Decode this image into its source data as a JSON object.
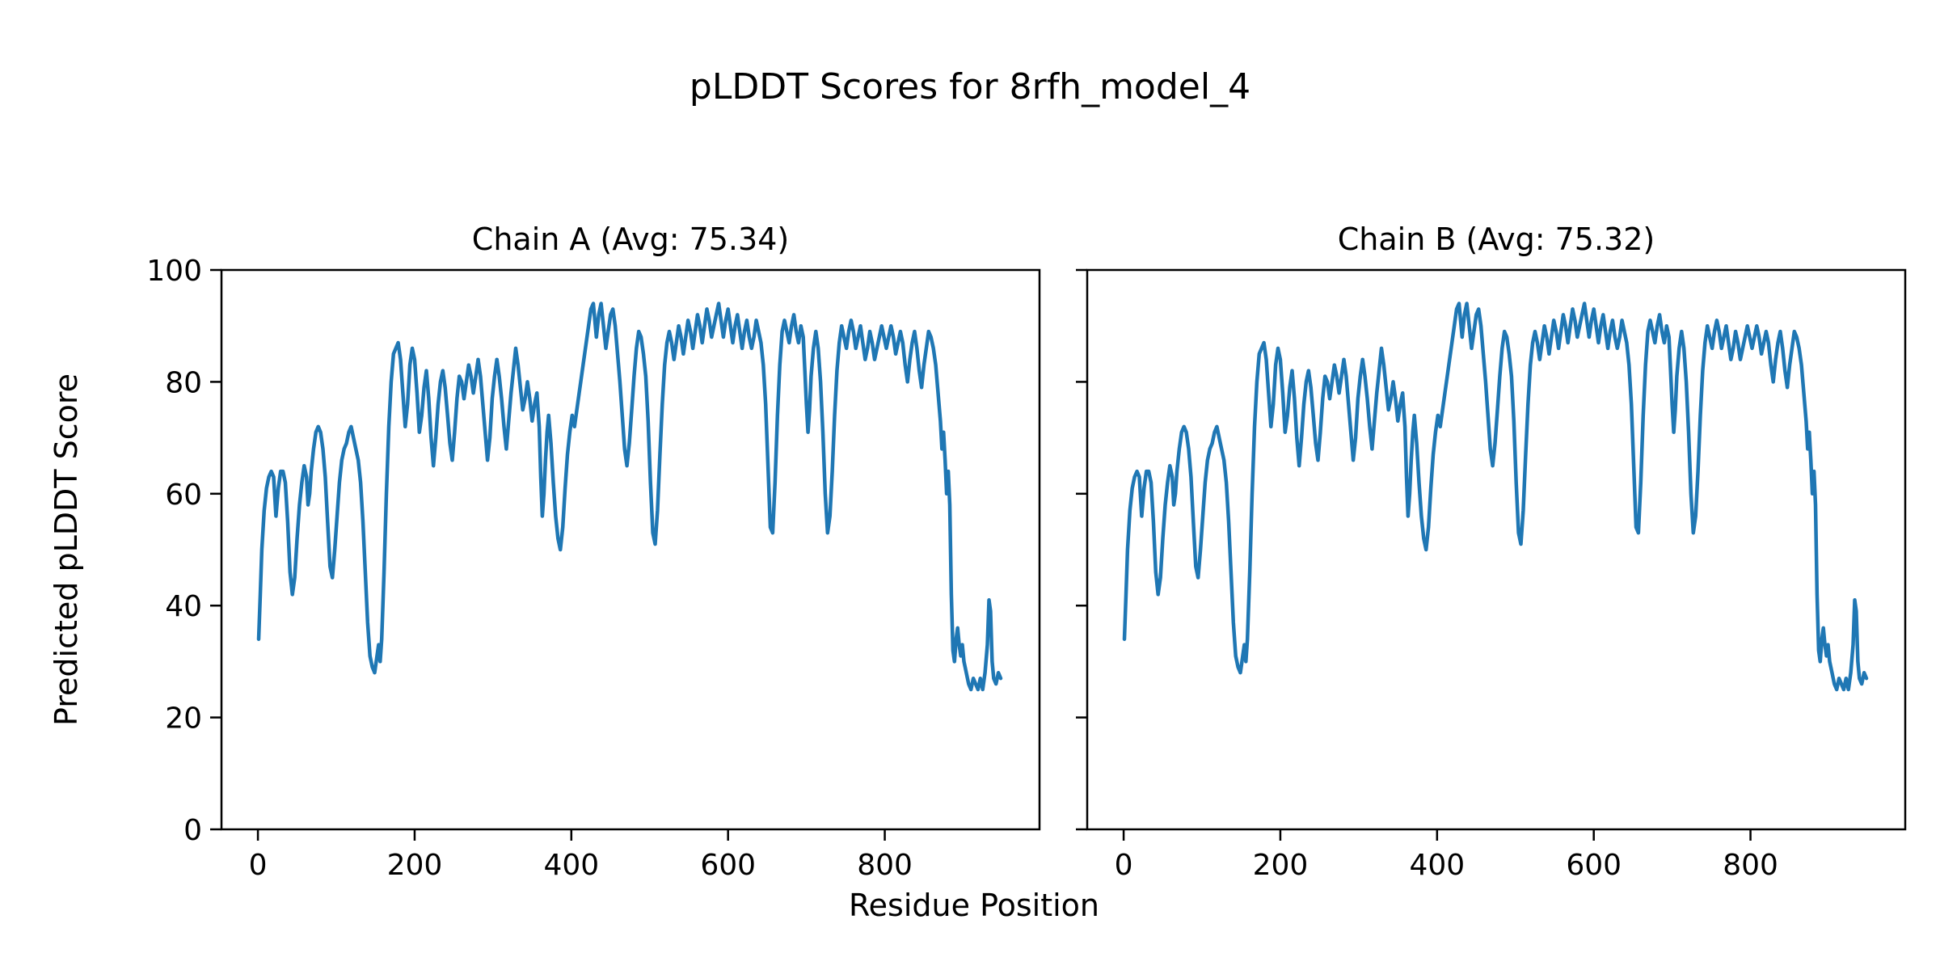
{
  "chart_data": {
    "type": "line",
    "suptitle": "pLDDT Scores for 8rfh_model_4",
    "xlabel": "Residue Position",
    "ylabel": "Predicted pLDDT Score",
    "line_color": "#1f77b4",
    "axis_color": "#000000",
    "background": "#ffffff",
    "grid": false,
    "legend": null,
    "xlim": [
      -46.5,
      997.5
    ],
    "ylim": [
      0,
      100
    ],
    "xticks": [
      0,
      200,
      400,
      600,
      800
    ],
    "xtick_labels": [
      "0",
      "200",
      "400",
      "600",
      "800"
    ],
    "yticks": [
      0,
      20,
      40,
      60,
      80,
      100
    ],
    "ytick_labels": [
      "0",
      "20",
      "40",
      "60",
      "80",
      "100"
    ],
    "subplots": [
      {
        "title": "Chain A (Avg: 75.34)",
        "chain": "A",
        "avg_plddt": 75.34
      },
      {
        "title": "Chain B (Avg: 75.32)",
        "chain": "B",
        "avg_plddt": 75.32
      }
    ],
    "note": "Chain A and Chain B curves are visually identical pLDDT profiles over ~950 residues; shared points series below is plotted in both subplots.",
    "points": [
      [
        1,
        34
      ],
      [
        3,
        42
      ],
      [
        5,
        50
      ],
      [
        8,
        57
      ],
      [
        11,
        61
      ],
      [
        14,
        63
      ],
      [
        17,
        64
      ],
      [
        20,
        63
      ],
      [
        23,
        56
      ],
      [
        26,
        61
      ],
      [
        29,
        64
      ],
      [
        32,
        64
      ],
      [
        35,
        62
      ],
      [
        38,
        55
      ],
      [
        41,
        46
      ],
      [
        44,
        42
      ],
      [
        47,
        45
      ],
      [
        50,
        52
      ],
      [
        53,
        58
      ],
      [
        56,
        62
      ],
      [
        59,
        65
      ],
      [
        62,
        63
      ],
      [
        64,
        58
      ],
      [
        66,
        60
      ],
      [
        68,
        64
      ],
      [
        71,
        68
      ],
      [
        74,
        71
      ],
      [
        77,
        72
      ],
      [
        80,
        71
      ],
      [
        83,
        68
      ],
      [
        86,
        63
      ],
      [
        89,
        55
      ],
      [
        92,
        47
      ],
      [
        95,
        45
      ],
      [
        98,
        50
      ],
      [
        101,
        56
      ],
      [
        104,
        62
      ],
      [
        107,
        66
      ],
      [
        110,
        68
      ],
      [
        113,
        69
      ],
      [
        116,
        71
      ],
      [
        119,
        72
      ],
      [
        122,
        70
      ],
      [
        125,
        68
      ],
      [
        128,
        66
      ],
      [
        131,
        62
      ],
      [
        134,
        55
      ],
      [
        137,
        46
      ],
      [
        140,
        37
      ],
      [
        143,
        31
      ],
      [
        146,
        29
      ],
      [
        149,
        28
      ],
      [
        152,
        31
      ],
      [
        154,
        33
      ],
      [
        156,
        30
      ],
      [
        158,
        34
      ],
      [
        161,
        46
      ],
      [
        164,
        60
      ],
      [
        167,
        72
      ],
      [
        170,
        80
      ],
      [
        173,
        85
      ],
      [
        176,
        86
      ],
      [
        179,
        87
      ],
      [
        182,
        84
      ],
      [
        185,
        78
      ],
      [
        188,
        72
      ],
      [
        191,
        76
      ],
      [
        194,
        83
      ],
      [
        197,
        86
      ],
      [
        200,
        84
      ],
      [
        203,
        78
      ],
      [
        206,
        71
      ],
      [
        209,
        74
      ],
      [
        212,
        79
      ],
      [
        215,
        82
      ],
      [
        218,
        77
      ],
      [
        221,
        70
      ],
      [
        224,
        65
      ],
      [
        227,
        70
      ],
      [
        230,
        76
      ],
      [
        233,
        80
      ],
      [
        236,
        82
      ],
      [
        239,
        79
      ],
      [
        242,
        74
      ],
      [
        245,
        69
      ],
      [
        248,
        66
      ],
      [
        251,
        71
      ],
      [
        254,
        77
      ],
      [
        257,
        81
      ],
      [
        260,
        80
      ],
      [
        263,
        77
      ],
      [
        266,
        80
      ],
      [
        269,
        83
      ],
      [
        272,
        81
      ],
      [
        275,
        78
      ],
      [
        278,
        81
      ],
      [
        281,
        84
      ],
      [
        284,
        81
      ],
      [
        287,
        76
      ],
      [
        290,
        71
      ],
      [
        293,
        66
      ],
      [
        296,
        70
      ],
      [
        299,
        77
      ],
      [
        302,
        81
      ],
      [
        305,
        84
      ],
      [
        308,
        81
      ],
      [
        311,
        77
      ],
      [
        314,
        72
      ],
      [
        317,
        68
      ],
      [
        320,
        73
      ],
      [
        323,
        78
      ],
      [
        326,
        82
      ],
      [
        329,
        86
      ],
      [
        332,
        83
      ],
      [
        335,
        79
      ],
      [
        338,
        75
      ],
      [
        341,
        77
      ],
      [
        344,
        80
      ],
      [
        347,
        77
      ],
      [
        350,
        73
      ],
      [
        353,
        76
      ],
      [
        356,
        78
      ],
      [
        359,
        72
      ],
      [
        361,
        63
      ],
      [
        363,
        56
      ],
      [
        365,
        60
      ],
      [
        367,
        66
      ],
      [
        369,
        71
      ],
      [
        371,
        74
      ],
      [
        374,
        69
      ],
      [
        377,
        62
      ],
      [
        380,
        56
      ],
      [
        383,
        52
      ],
      [
        386,
        50
      ],
      [
        389,
        54
      ],
      [
        392,
        61
      ],
      [
        395,
        67
      ],
      [
        398,
        71
      ],
      [
        401,
        74
      ],
      [
        404,
        72
      ],
      [
        407,
        75
      ],
      [
        410,
        78
      ],
      [
        413,
        81
      ],
      [
        416,
        84
      ],
      [
        419,
        87
      ],
      [
        422,
        90
      ],
      [
        425,
        93
      ],
      [
        428,
        94
      ],
      [
        430,
        91
      ],
      [
        432,
        88
      ],
      [
        435,
        92
      ],
      [
        438,
        94
      ],
      [
        441,
        90
      ],
      [
        444,
        86
      ],
      [
        447,
        89
      ],
      [
        450,
        92
      ],
      [
        453,
        93
      ],
      [
        456,
        90
      ],
      [
        459,
        85
      ],
      [
        462,
        80
      ],
      [
        465,
        74
      ],
      [
        468,
        68
      ],
      [
        471,
        65
      ],
      [
        474,
        69
      ],
      [
        477,
        75
      ],
      [
        480,
        81
      ],
      [
        483,
        86
      ],
      [
        486,
        89
      ],
      [
        489,
        88
      ],
      [
        492,
        85
      ],
      [
        495,
        81
      ],
      [
        498,
        73
      ],
      [
        501,
        62
      ],
      [
        504,
        53
      ],
      [
        507,
        51
      ],
      [
        510,
        57
      ],
      [
        513,
        67
      ],
      [
        516,
        76
      ],
      [
        519,
        83
      ],
      [
        522,
        87
      ],
      [
        525,
        89
      ],
      [
        528,
        87
      ],
      [
        531,
        84
      ],
      [
        534,
        87
      ],
      [
        537,
        90
      ],
      [
        540,
        88
      ],
      [
        543,
        85
      ],
      [
        546,
        88
      ],
      [
        549,
        91
      ],
      [
        552,
        89
      ],
      [
        555,
        86
      ],
      [
        558,
        89
      ],
      [
        561,
        92
      ],
      [
        564,
        90
      ],
      [
        567,
        87
      ],
      [
        570,
        90
      ],
      [
        573,
        93
      ],
      [
        576,
        91
      ],
      [
        579,
        88
      ],
      [
        582,
        90
      ],
      [
        585,
        92
      ],
      [
        588,
        94
      ],
      [
        591,
        91
      ],
      [
        594,
        88
      ],
      [
        597,
        91
      ],
      [
        600,
        93
      ],
      [
        603,
        90
      ],
      [
        606,
        87
      ],
      [
        609,
        90
      ],
      [
        612,
        92
      ],
      [
        615,
        89
      ],
      [
        618,
        86
      ],
      [
        621,
        89
      ],
      [
        624,
        91
      ],
      [
        627,
        88
      ],
      [
        630,
        86
      ],
      [
        633,
        88
      ],
      [
        636,
        91
      ],
      [
        639,
        89
      ],
      [
        642,
        87
      ],
      [
        645,
        83
      ],
      [
        648,
        76
      ],
      [
        651,
        65
      ],
      [
        654,
        54
      ],
      [
        657,
        53
      ],
      [
        660,
        62
      ],
      [
        663,
        74
      ],
      [
        666,
        83
      ],
      [
        669,
        89
      ],
      [
        672,
        91
      ],
      [
        675,
        89
      ],
      [
        678,
        87
      ],
      [
        681,
        90
      ],
      [
        684,
        92
      ],
      [
        687,
        89
      ],
      [
        690,
        87
      ],
      [
        693,
        90
      ],
      [
        696,
        88
      ],
      [
        698,
        82
      ],
      [
        700,
        76
      ],
      [
        702,
        71
      ],
      [
        704,
        75
      ],
      [
        706,
        81
      ],
      [
        709,
        86
      ],
      [
        712,
        89
      ],
      [
        715,
        86
      ],
      [
        718,
        80
      ],
      [
        721,
        71
      ],
      [
        724,
        60
      ],
      [
        727,
        53
      ],
      [
        730,
        56
      ],
      [
        733,
        64
      ],
      [
        736,
        74
      ],
      [
        739,
        82
      ],
      [
        742,
        87
      ],
      [
        745,
        90
      ],
      [
        748,
        88
      ],
      [
        751,
        86
      ],
      [
        754,
        89
      ],
      [
        757,
        91
      ],
      [
        760,
        89
      ],
      [
        763,
        86
      ],
      [
        766,
        88
      ],
      [
        769,
        90
      ],
      [
        772,
        87
      ],
      [
        775,
        84
      ],
      [
        778,
        86
      ],
      [
        781,
        89
      ],
      [
        784,
        87
      ],
      [
        787,
        84
      ],
      [
        790,
        86
      ],
      [
        793,
        88
      ],
      [
        796,
        90
      ],
      [
        799,
        88
      ],
      [
        802,
        86
      ],
      [
        805,
        88
      ],
      [
        808,
        90
      ],
      [
        811,
        88
      ],
      [
        814,
        85
      ],
      [
        817,
        87
      ],
      [
        820,
        89
      ],
      [
        823,
        87
      ],
      [
        826,
        83
      ],
      [
        829,
        80
      ],
      [
        832,
        84
      ],
      [
        835,
        87
      ],
      [
        838,
        89
      ],
      [
        841,
        86
      ],
      [
        844,
        82
      ],
      [
        847,
        79
      ],
      [
        850,
        83
      ],
      [
        853,
        86
      ],
      [
        856,
        89
      ],
      [
        859,
        88
      ],
      [
        862,
        86
      ],
      [
        865,
        83
      ],
      [
        868,
        78
      ],
      [
        871,
        73
      ],
      [
        873,
        68
      ],
      [
        875,
        71
      ],
      [
        877,
        66
      ],
      [
        879,
        60
      ],
      [
        881,
        64
      ],
      [
        883,
        58
      ],
      [
        885,
        42
      ],
      [
        887,
        32
      ],
      [
        889,
        30
      ],
      [
        891,
        34
      ],
      [
        893,
        36
      ],
      [
        895,
        33
      ],
      [
        897,
        31
      ],
      [
        899,
        33
      ],
      [
        901,
        30
      ],
      [
        904,
        28
      ],
      [
        907,
        26
      ],
      [
        910,
        25
      ],
      [
        913,
        27
      ],
      [
        916,
        26
      ],
      [
        919,
        25
      ],
      [
        922,
        27
      ],
      [
        925,
        25
      ],
      [
        928,
        28
      ],
      [
        931,
        33
      ],
      [
        933,
        41
      ],
      [
        935,
        39
      ],
      [
        937,
        30
      ],
      [
        939,
        27
      ],
      [
        942,
        26
      ],
      [
        945,
        28
      ],
      [
        948,
        27
      ]
    ]
  }
}
